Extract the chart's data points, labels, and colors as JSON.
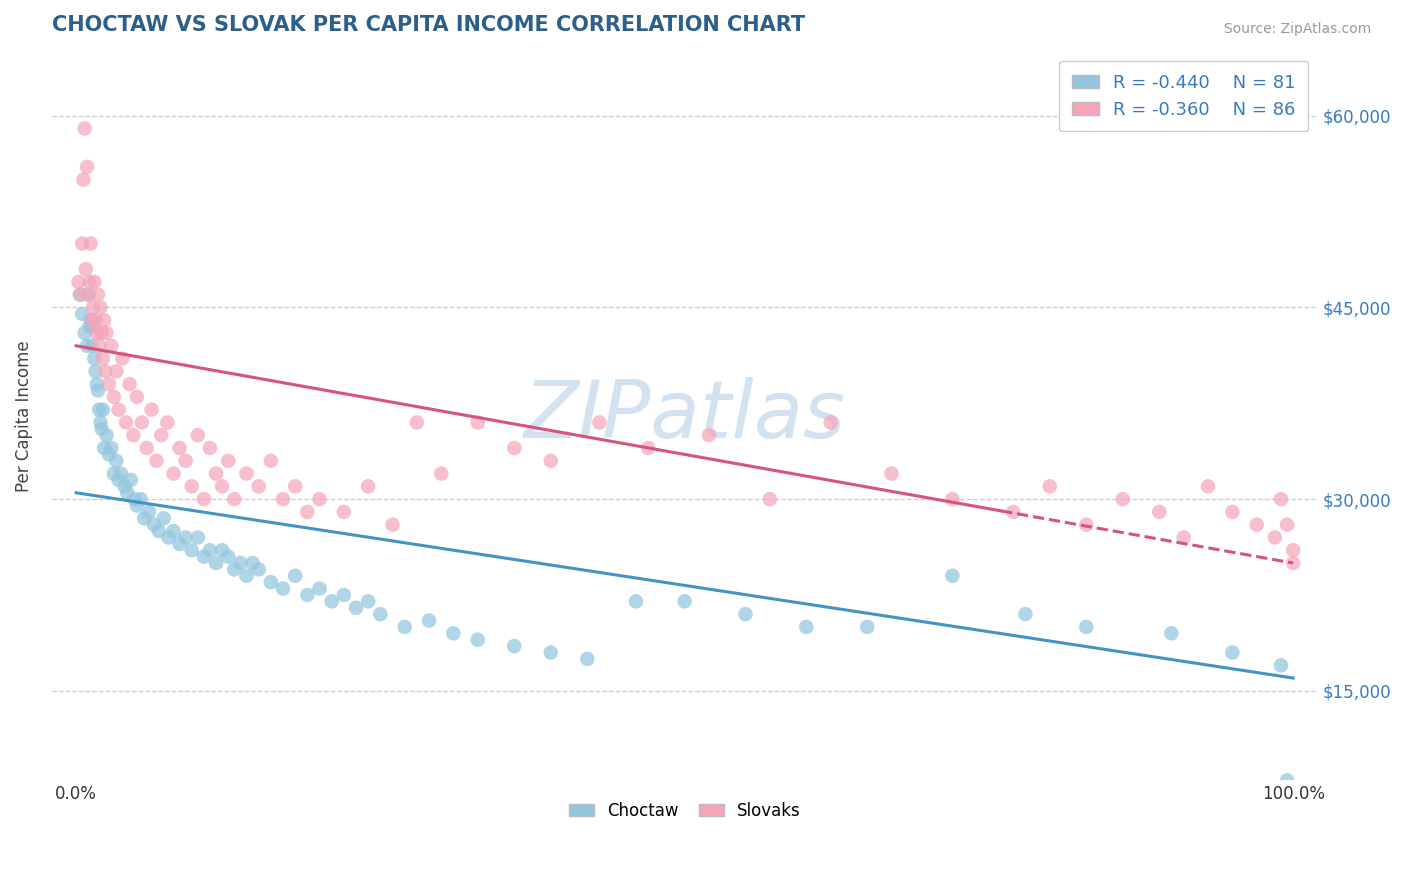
{
  "title": "CHOCTAW VS SLOVAK PER CAPITA INCOME CORRELATION CHART",
  "source": "Source: ZipAtlas.com",
  "ylabel": "Per Capita Income",
  "yticks": [
    15000,
    30000,
    45000,
    60000
  ],
  "ytick_labels": [
    "$15,000",
    "$30,000",
    "$45,000",
    "$60,000"
  ],
  "legend_r": [
    -0.44,
    -0.36
  ],
  "legend_n": [
    81,
    86
  ],
  "blue_color": "#92c5de",
  "pink_color": "#f4a6b8",
  "blue_line_color": "#4393c3",
  "pink_line_color": "#d6537a",
  "title_color": "#2c5f8a",
  "axis_color": "#3a7abf",
  "watermark_color": "#cddff0",
  "background_color": "#ffffff",
  "grid_color": "#cccccc",
  "xmin": 0.0,
  "xmax": 100.0,
  "ymin": 8000,
  "ymax": 65000,
  "choctaw_line_x0": 0,
  "choctaw_line_x1": 100,
  "choctaw_line_y0": 30500,
  "choctaw_line_y1": 16000,
  "slovak_line_x0": 0,
  "slovak_line_x1": 100,
  "slovak_line_y0": 42000,
  "slovak_line_y1": 25000,
  "slovak_dash_start": 76,
  "choctaw_x": [
    0.3,
    0.5,
    0.7,
    0.9,
    1.0,
    1.1,
    1.2,
    1.3,
    1.4,
    1.5,
    1.6,
    1.7,
    1.8,
    1.9,
    2.0,
    2.1,
    2.2,
    2.3,
    2.5,
    2.7,
    2.9,
    3.1,
    3.3,
    3.5,
    3.7,
    4.0,
    4.2,
    4.5,
    4.8,
    5.0,
    5.3,
    5.6,
    6.0,
    6.4,
    6.8,
    7.2,
    7.6,
    8.0,
    8.5,
    9.0,
    9.5,
    10.0,
    10.5,
    11.0,
    11.5,
    12.0,
    12.5,
    13.0,
    13.5,
    14.0,
    14.5,
    15.0,
    16.0,
    17.0,
    18.0,
    19.0,
    20.0,
    21.0,
    22.0,
    23.0,
    24.0,
    25.0,
    27.0,
    29.0,
    31.0,
    33.0,
    36.0,
    39.0,
    42.0,
    46.0,
    50.0,
    55.0,
    60.0,
    65.0,
    72.0,
    78.0,
    83.0,
    90.0,
    95.0,
    99.0,
    99.5
  ],
  "choctaw_y": [
    46000,
    44500,
    43000,
    42000,
    46000,
    43500,
    44000,
    42000,
    43500,
    41000,
    40000,
    39000,
    38500,
    37000,
    36000,
    35500,
    37000,
    34000,
    35000,
    33500,
    34000,
    32000,
    33000,
    31500,
    32000,
    31000,
    30500,
    31500,
    30000,
    29500,
    30000,
    28500,
    29000,
    28000,
    27500,
    28500,
    27000,
    27500,
    26500,
    27000,
    26000,
    27000,
    25500,
    26000,
    25000,
    26000,
    25500,
    24500,
    25000,
    24000,
    25000,
    24500,
    23500,
    23000,
    24000,
    22500,
    23000,
    22000,
    22500,
    21500,
    22000,
    21000,
    20000,
    20500,
    19500,
    19000,
    18500,
    18000,
    17500,
    22000,
    22000,
    21000,
    20000,
    20000,
    24000,
    21000,
    20000,
    19500,
    18000,
    17000,
    8000
  ],
  "slovak_x": [
    0.2,
    0.4,
    0.5,
    0.6,
    0.7,
    0.8,
    0.9,
    1.0,
    1.1,
    1.2,
    1.3,
    1.4,
    1.5,
    1.6,
    1.7,
    1.8,
    1.9,
    2.0,
    2.1,
    2.2,
    2.3,
    2.4,
    2.5,
    2.7,
    2.9,
    3.1,
    3.3,
    3.5,
    3.8,
    4.1,
    4.4,
    4.7,
    5.0,
    5.4,
    5.8,
    6.2,
    6.6,
    7.0,
    7.5,
    8.0,
    8.5,
    9.0,
    9.5,
    10.0,
    10.5,
    11.0,
    11.5,
    12.0,
    12.5,
    13.0,
    14.0,
    15.0,
    16.0,
    17.0,
    18.0,
    19.0,
    20.0,
    22.0,
    24.0,
    26.0,
    28.0,
    30.0,
    33.0,
    36.0,
    39.0,
    43.0,
    47.0,
    52.0,
    57.0,
    62.0,
    67.0,
    72.0,
    77.0,
    80.0,
    83.0,
    86.0,
    89.0,
    91.0,
    93.0,
    95.0,
    97.0,
    98.5,
    99.0,
    99.5,
    100.0,
    100.0
  ],
  "slovak_y": [
    47000,
    46000,
    50000,
    55000,
    59000,
    48000,
    56000,
    46000,
    47000,
    50000,
    44000,
    45000,
    47000,
    44000,
    43000,
    46000,
    42000,
    45000,
    43000,
    41000,
    44000,
    40000,
    43000,
    39000,
    42000,
    38000,
    40000,
    37000,
    41000,
    36000,
    39000,
    35000,
    38000,
    36000,
    34000,
    37000,
    33000,
    35000,
    36000,
    32000,
    34000,
    33000,
    31000,
    35000,
    30000,
    34000,
    32000,
    31000,
    33000,
    30000,
    32000,
    31000,
    33000,
    30000,
    31000,
    29000,
    30000,
    29000,
    31000,
    28000,
    36000,
    32000,
    36000,
    34000,
    33000,
    36000,
    34000,
    35000,
    30000,
    36000,
    32000,
    30000,
    29000,
    31000,
    28000,
    30000,
    29000,
    27000,
    31000,
    29000,
    28000,
    27000,
    30000,
    28000,
    26000,
    25000
  ]
}
